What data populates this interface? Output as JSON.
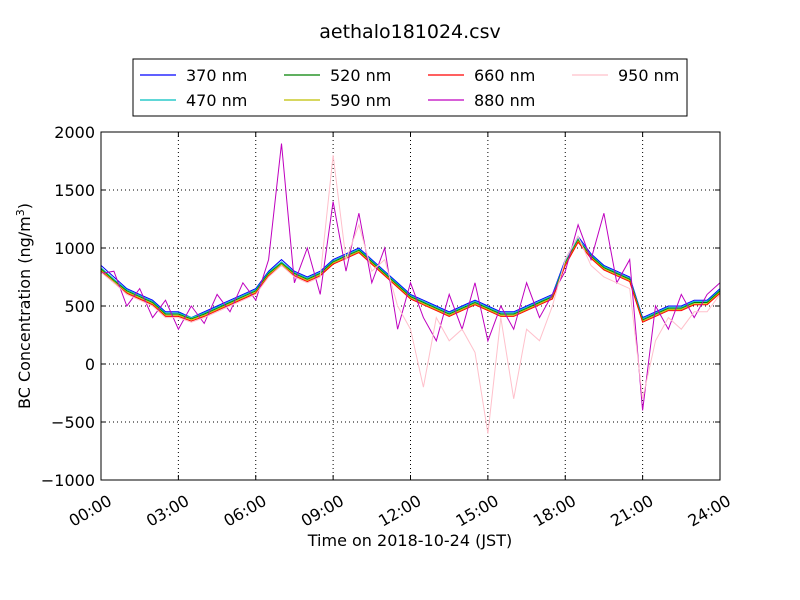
{
  "chart_data": {
    "type": "line",
    "title": "aethalo181024.csv",
    "xlabel": "Time on 2018-10-24 (JST)",
    "ylabel": "BC Concentration (ng/m",
    "ylabel_sup": "3",
    "ylabel_end": ")",
    "xlim": [
      0,
      24
    ],
    "ylim": [
      -1000,
      2000
    ],
    "grid": true,
    "legend_position": "top",
    "x_ticks": [
      {
        "value": 0,
        "label": "00:00"
      },
      {
        "value": 3,
        "label": "03:00"
      },
      {
        "value": 6,
        "label": "06:00"
      },
      {
        "value": 9,
        "label": "09:00"
      },
      {
        "value": 12,
        "label": "12:00"
      },
      {
        "value": 15,
        "label": "15:00"
      },
      {
        "value": 18,
        "label": "18:00"
      },
      {
        "value": 21,
        "label": "21:00"
      },
      {
        "value": 24,
        "label": "24:00"
      }
    ],
    "y_ticks": [
      {
        "value": 2000,
        "label": "2000"
      },
      {
        "value": 1500,
        "label": "1500"
      },
      {
        "value": 1000,
        "label": "1000"
      },
      {
        "value": 500,
        "label": "500"
      },
      {
        "value": 0,
        "label": "0"
      },
      {
        "value": -500,
        "label": "−500"
      },
      {
        "value": -1000,
        "label": "−1000"
      }
    ],
    "x": [
      0.0,
      0.5,
      1.0,
      1.5,
      2.0,
      2.5,
      3.0,
      3.5,
      4.0,
      4.5,
      5.0,
      5.5,
      6.0,
      6.5,
      7.0,
      7.5,
      8.0,
      8.5,
      9.0,
      9.5,
      10.0,
      10.5,
      11.0,
      11.5,
      12.0,
      12.5,
      13.0,
      13.5,
      14.0,
      14.5,
      15.0,
      15.5,
      16.0,
      16.5,
      17.0,
      17.5,
      18.0,
      18.5,
      19.0,
      19.5,
      20.0,
      20.5,
      21.0,
      21.5,
      22.0,
      22.5,
      23.0,
      23.5,
      24.0
    ],
    "series": [
      {
        "name": "370 nm",
        "color": "#0000ff",
        "values": [
          850,
          750,
          650,
          600,
          550,
          450,
          450,
          400,
          450,
          500,
          550,
          600,
          650,
          800,
          900,
          800,
          750,
          800,
          900,
          950,
          1000,
          900,
          800,
          700,
          600,
          550,
          500,
          450,
          500,
          550,
          500,
          450,
          450,
          500,
          550,
          600,
          900,
          1100,
          950,
          850,
          800,
          750,
          400,
          450,
          500,
          500,
          550,
          550,
          650
        ]
      },
      {
        "name": "470 nm",
        "color": "#00bfbf",
        "values": [
          830,
          730,
          640,
          590,
          540,
          440,
          440,
          400,
          440,
          490,
          540,
          590,
          640,
          790,
          880,
          790,
          740,
          790,
          890,
          940,
          990,
          890,
          790,
          690,
          590,
          540,
          490,
          440,
          490,
          540,
          490,
          440,
          440,
          490,
          540,
          590,
          880,
          1080,
          940,
          840,
          790,
          740,
          390,
          440,
          490,
          490,
          540,
          540,
          640
        ]
      },
      {
        "name": "520 nm",
        "color": "#008000",
        "values": [
          820,
          720,
          630,
          580,
          530,
          430,
          430,
          390,
          430,
          480,
          530,
          580,
          630,
          780,
          870,
          780,
          730,
          780,
          880,
          930,
          980,
          880,
          780,
          680,
          580,
          530,
          480,
          430,
          480,
          530,
          480,
          430,
          430,
          480,
          530,
          580,
          870,
          1070,
          930,
          830,
          780,
          730,
          380,
          430,
          480,
          480,
          530,
          530,
          630
        ]
      },
      {
        "name": "590 nm",
        "color": "#bfbf00",
        "values": [
          810,
          710,
          620,
          570,
          520,
          420,
          420,
          380,
          420,
          470,
          520,
          570,
          620,
          770,
          860,
          770,
          720,
          770,
          870,
          920,
          970,
          870,
          770,
          670,
          570,
          520,
          470,
          420,
          470,
          520,
          470,
          420,
          420,
          470,
          520,
          570,
          860,
          1060,
          920,
          820,
          770,
          720,
          370,
          420,
          470,
          470,
          520,
          520,
          620
        ]
      },
      {
        "name": "660 nm",
        "color": "#ff0000",
        "values": [
          800,
          700,
          610,
          560,
          510,
          410,
          410,
          370,
          410,
          460,
          510,
          560,
          610,
          760,
          850,
          760,
          710,
          760,
          860,
          910,
          960,
          860,
          760,
          660,
          560,
          510,
          460,
          410,
          460,
          510,
          460,
          410,
          410,
          460,
          510,
          560,
          850,
          1050,
          910,
          810,
          760,
          710,
          360,
          410,
          460,
          460,
          510,
          510,
          610
        ]
      },
      {
        "name": "880 nm",
        "color": "#bf00bf",
        "values": [
          780,
          800,
          500,
          650,
          400,
          550,
          300,
          500,
          350,
          600,
          450,
          700,
          550,
          900,
          1900,
          700,
          1000,
          600,
          1400,
          800,
          1300,
          700,
          1000,
          300,
          700,
          400,
          200,
          600,
          300,
          700,
          200,
          500,
          300,
          700,
          400,
          600,
          800,
          1200,
          900,
          1300,
          700,
          900,
          -400,
          500,
          300,
          600,
          400,
          600,
          700
        ]
      },
      {
        "name": "950 nm",
        "color": "#ffc0cb",
        "values": [
          790,
          700,
          600,
          550,
          500,
          400,
          400,
          360,
          400,
          450,
          500,
          550,
          600,
          750,
          850,
          750,
          700,
          750,
          1800,
          900,
          1200,
          800,
          900,
          500,
          300,
          -200,
          400,
          200,
          300,
          100,
          -600,
          400,
          -300,
          300,
          200,
          500,
          900,
          1100,
          850,
          750,
          700,
          650,
          -300,
          200,
          400,
          300,
          450,
          450,
          600
        ]
      }
    ]
  }
}
